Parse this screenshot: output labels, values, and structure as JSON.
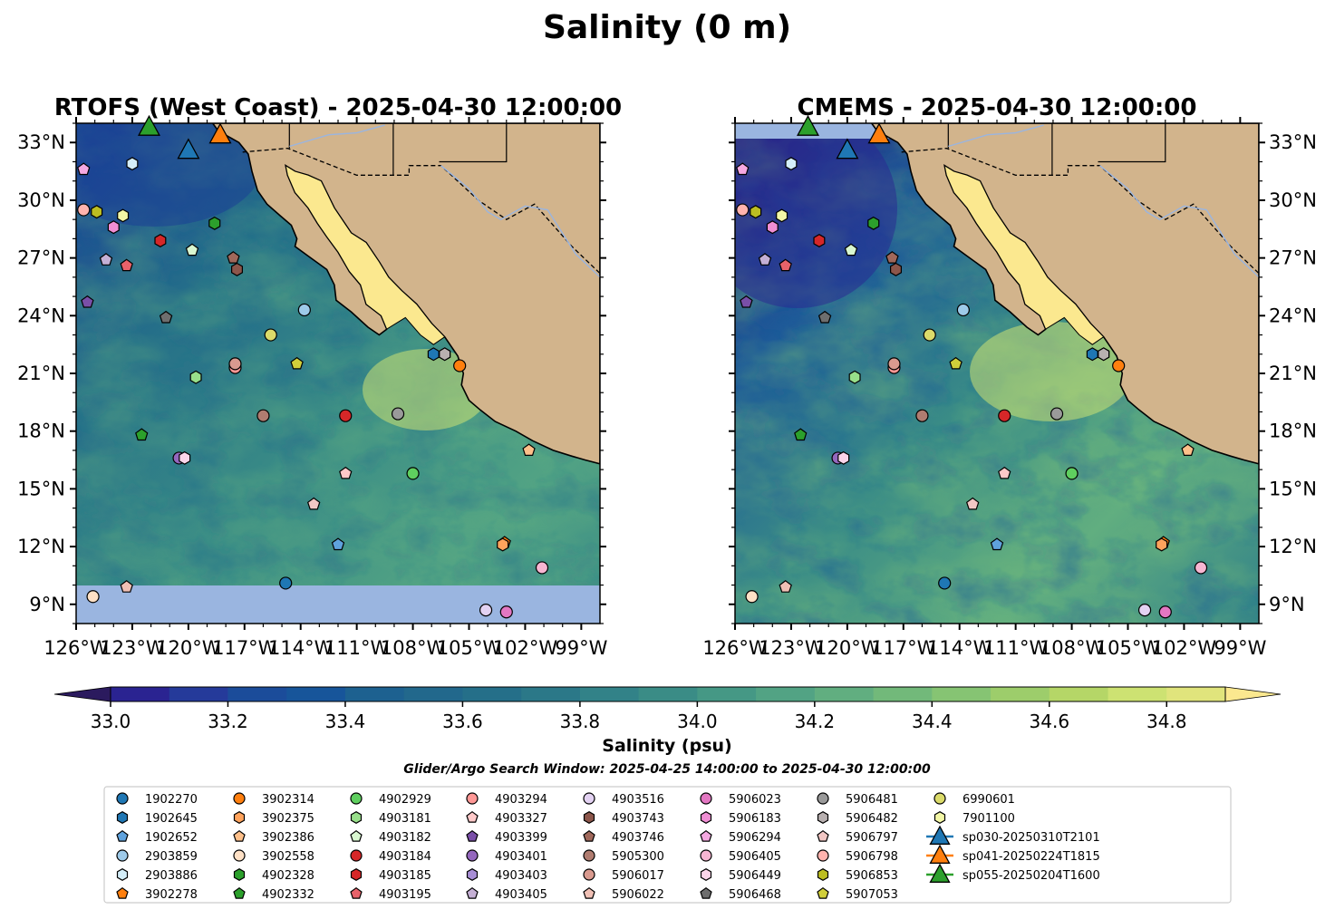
{
  "figure": {
    "suptitle": "Salinity (0 m)",
    "search_window": "Glider/Argo Search Window: 2025-04-25 14:00:00 to 2025-04-30 12:00:00"
  },
  "colors": {
    "land": "#d2b48c",
    "nodata": "#9ab5e0",
    "cmap": [
      "#2b1a5e",
      "#2a2391",
      "#253a9a",
      "#1b4c9a",
      "#17559a",
      "#1d6190",
      "#22688c",
      "#256f89",
      "#2b7888",
      "#328288",
      "#3a8c86",
      "#459885",
      "#52a384",
      "#61ae80",
      "#72b97a",
      "#86c473",
      "#9dcd6b",
      "#b5d667",
      "#cde272",
      "#e0e47c",
      "#fbe88f"
    ]
  },
  "colorbar": {
    "label": "Salinity (psu)",
    "min": 32.9,
    "max": 34.9,
    "step": 0.1,
    "tick_labels": [
      "33.0",
      "33.2",
      "33.4",
      "33.6",
      "33.8",
      "34.0",
      "34.2",
      "34.4",
      "34.6",
      "34.8"
    ],
    "extend": "both"
  },
  "chart_data": [
    {
      "type": "heatmap",
      "title": "RTOFS (West Coast) - 2025-04-30 12:00:00",
      "xlim": [
        -126,
        -98
      ],
      "ylim": [
        8,
        34
      ],
      "x_tick_labels": [
        "126°W",
        "123°W",
        "120°W",
        "117°W",
        "114°W",
        "111°W",
        "108°W",
        "105°W",
        "102°W",
        "99°W"
      ],
      "y_tick_labels": [
        "9°N",
        "12°N",
        "15°N",
        "18°N",
        "21°N",
        "24°N",
        "27°N",
        "30°N",
        "33°N"
      ],
      "nodata_below_lat": 10.1
    },
    {
      "type": "heatmap",
      "title": "CMEMS - 2025-04-30 12:00:00",
      "xlim": [
        -126,
        -98
      ],
      "ylim": [
        8,
        34
      ],
      "x_tick_labels": [
        "126°W",
        "123°W",
        "120°W",
        "117°W",
        "114°W",
        "111°W",
        "108°W",
        "105°W",
        "102°W",
        "99°W"
      ],
      "y_tick_labels": [
        "9°N",
        "12°N",
        "15°N",
        "18°N",
        "21°N",
        "24°N",
        "27°N",
        "30°N",
        "33°N"
      ],
      "nodata_above_lat": 33.2
    }
  ],
  "platforms": [
    {
      "id": "1902270",
      "marker": "circle",
      "color": "#1f77b4",
      "lon": -114.8,
      "lat": 10.1
    },
    {
      "id": "1902645",
      "marker": "hexagon",
      "color": "#1f77b4",
      "lon": -106.9,
      "lat": 22.0
    },
    {
      "id": "1902652",
      "marker": "pentagon",
      "color": "#5fa2dd",
      "lon": -112.0,
      "lat": 12.1
    },
    {
      "id": "2903859",
      "marker": "circle",
      "color": "#9ecae9",
      "lon": -113.8,
      "lat": 24.3
    },
    {
      "id": "2903886",
      "marker": "hexagon",
      "color": "#d4eef9",
      "lon": -123.0,
      "lat": 31.9
    },
    {
      "id": "3902278",
      "marker": "pentagon",
      "color": "#ff7f0e",
      "lon": -103.1,
      "lat": 12.2
    },
    {
      "id": "3902314",
      "marker": "circle",
      "color": "#ff7f0e",
      "lon": -105.5,
      "lat": 21.4
    },
    {
      "id": "3902375",
      "marker": "hexagon",
      "color": "#ffa35c",
      "lon": -103.2,
      "lat": 12.1
    },
    {
      "id": "3902386",
      "marker": "pentagon",
      "color": "#ffc08a",
      "lon": -101.8,
      "lat": 17.0
    },
    {
      "id": "3902558",
      "marker": "circle",
      "color": "#ffe1c6",
      "lon": -125.1,
      "lat": 9.4
    },
    {
      "id": "4902328",
      "marker": "hexagon",
      "color": "#2ca02c",
      "lon": -118.6,
      "lat": 28.8
    },
    {
      "id": "4902332",
      "marker": "pentagon",
      "color": "#2ca02c",
      "lon": -122.5,
      "lat": 17.8
    },
    {
      "id": "4902929",
      "marker": "circle",
      "color": "#5fcf5f",
      "lon": -108.0,
      "lat": 15.8
    },
    {
      "id": "4903181",
      "marker": "hexagon",
      "color": "#98df8a",
      "lon": -119.6,
      "lat": 20.8
    },
    {
      "id": "4903182",
      "marker": "pentagon",
      "color": "#d9f7d0",
      "lon": -119.8,
      "lat": 27.4
    },
    {
      "id": "4903184",
      "marker": "circle",
      "color": "#d62728",
      "lon": -111.6,
      "lat": 18.8
    },
    {
      "id": "4903185",
      "marker": "hexagon",
      "color": "#d62728",
      "lon": -121.5,
      "lat": 27.9
    },
    {
      "id": "4903195",
      "marker": "pentagon",
      "color": "#e8626a",
      "lon": -123.3,
      "lat": 26.6
    },
    {
      "id": "4903294",
      "marker": "circle",
      "color": "#ff9896",
      "lon": -117.5,
      "lat": 21.3
    },
    {
      "id": "4903327",
      "marker": "pentagon",
      "color": "#ffc9c9",
      "lon": -111.6,
      "lat": 15.8
    },
    {
      "id": "4903399",
      "marker": "pentagon",
      "color": "#7a4fa8",
      "lon": -125.4,
      "lat": 24.7
    },
    {
      "id": "4903401",
      "marker": "circle",
      "color": "#9467bd",
      "lon": -120.5,
      "lat": 16.6
    },
    {
      "id": "4903403",
      "marker": "hexagon",
      "color": "#a88ed6",
      "lon": -106.3,
      "lat": 22.0
    },
    {
      "id": "4903405",
      "marker": "pentagon",
      "color": "#c5b0d5",
      "lon": -124.4,
      "lat": 26.9
    },
    {
      "id": "4903516",
      "marker": "circle",
      "color": "#e3d2f2",
      "lon": -104.1,
      "lat": 8.7
    },
    {
      "id": "4903743",
      "marker": "hexagon",
      "color": "#8c564b",
      "lon": -117.4,
      "lat": 26.4
    },
    {
      "id": "4903746",
      "marker": "pentagon",
      "color": "#a0685b",
      "lon": -117.6,
      "lat": 27.0
    },
    {
      "id": "5905300",
      "marker": "circle",
      "color": "#b07c70",
      "lon": -116.0,
      "lat": 18.8
    },
    {
      "id": "5906017",
      "marker": "circle",
      "color": "#d99a8f",
      "lon": -117.5,
      "lat": 21.5
    },
    {
      "id": "5906022",
      "marker": "pentagon",
      "color": "#f0c0b5",
      "lon": -123.3,
      "lat": 9.9
    },
    {
      "id": "5906023",
      "marker": "circle",
      "color": "#e377c2",
      "lon": -103.0,
      "lat": 8.6
    },
    {
      "id": "5906183",
      "marker": "hexagon",
      "color": "#f08ed4",
      "lon": -124.0,
      "lat": 28.6
    },
    {
      "id": "5906294",
      "marker": "pentagon",
      "color": "#f5a8e1",
      "lon": -125.6,
      "lat": 31.6
    },
    {
      "id": "5906405",
      "marker": "circle",
      "color": "#f7b6d2",
      "lon": -101.1,
      "lat": 10.9
    },
    {
      "id": "5906449",
      "marker": "hexagon",
      "color": "#fbd5ea",
      "lon": -120.2,
      "lat": 16.6
    },
    {
      "id": "5906468",
      "marker": "pentagon",
      "color": "#6e6e6e",
      "lon": -121.2,
      "lat": 23.9
    },
    {
      "id": "5906481",
      "marker": "circle",
      "color": "#9a9a9a",
      "lon": -108.8,
      "lat": 18.9
    },
    {
      "id": "5906482",
      "marker": "hexagon",
      "color": "#b8b0b0",
      "lon": -106.3,
      "lat": 22.0
    },
    {
      "id": "5906797",
      "marker": "pentagon",
      "color": "#f2c7c4",
      "lon": -113.3,
      "lat": 14.2
    },
    {
      "id": "5906798",
      "marker": "circle",
      "color": "#ffb3ae",
      "lon": -125.6,
      "lat": 29.5
    },
    {
      "id": "5906853",
      "marker": "hexagon",
      "color": "#bcbd22",
      "lon": -124.9,
      "lat": 29.4
    },
    {
      "id": "5907053",
      "marker": "pentagon",
      "color": "#d1cf3a",
      "lon": -114.2,
      "lat": 21.5
    },
    {
      "id": "6990601",
      "marker": "circle",
      "color": "#dbdb6a",
      "lon": -115.6,
      "lat": 23.0
    },
    {
      "id": "7901100",
      "marker": "hexagon",
      "color": "#f3f7a6",
      "lon": -123.5,
      "lat": 29.2
    }
  ],
  "gliders": [
    {
      "id": "sp030-20250310T2101",
      "color": "#1f77b4",
      "lon": -120.0,
      "lat": 32.6
    },
    {
      "id": "sp041-20250224T1815",
      "color": "#ff7f0e",
      "lon": -118.3,
      "lat": 33.4
    },
    {
      "id": "sp055-20250204T1600",
      "color": "#2ca02c",
      "lon": -122.1,
      "lat": 33.8
    }
  ]
}
